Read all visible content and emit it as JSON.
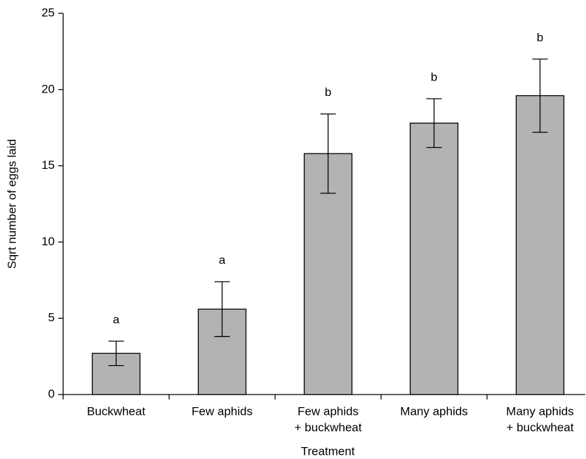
{
  "chart_data": {
    "type": "bar",
    "x_label": "Treatment",
    "y_label": "Sqrt number of eggs laid",
    "categories": [
      [
        "Buckwheat"
      ],
      [
        "Few aphids"
      ],
      [
        "Few aphids",
        "+ buckwheat"
      ],
      [
        "Many aphids"
      ],
      [
        "Many aphids",
        "+ buckwheat"
      ]
    ],
    "values": [
      2.7,
      5.6,
      15.8,
      17.8,
      19.6
    ],
    "errors": [
      0.8,
      1.8,
      2.6,
      1.6,
      2.4
    ],
    "annotations": [
      "a",
      "a",
      "b",
      "b",
      "b"
    ],
    "color": "#b3b3b3",
    "ylim": [
      0,
      25
    ],
    "yticks": [
      0,
      5,
      10,
      15,
      20,
      25
    ],
    "grid": false
  }
}
